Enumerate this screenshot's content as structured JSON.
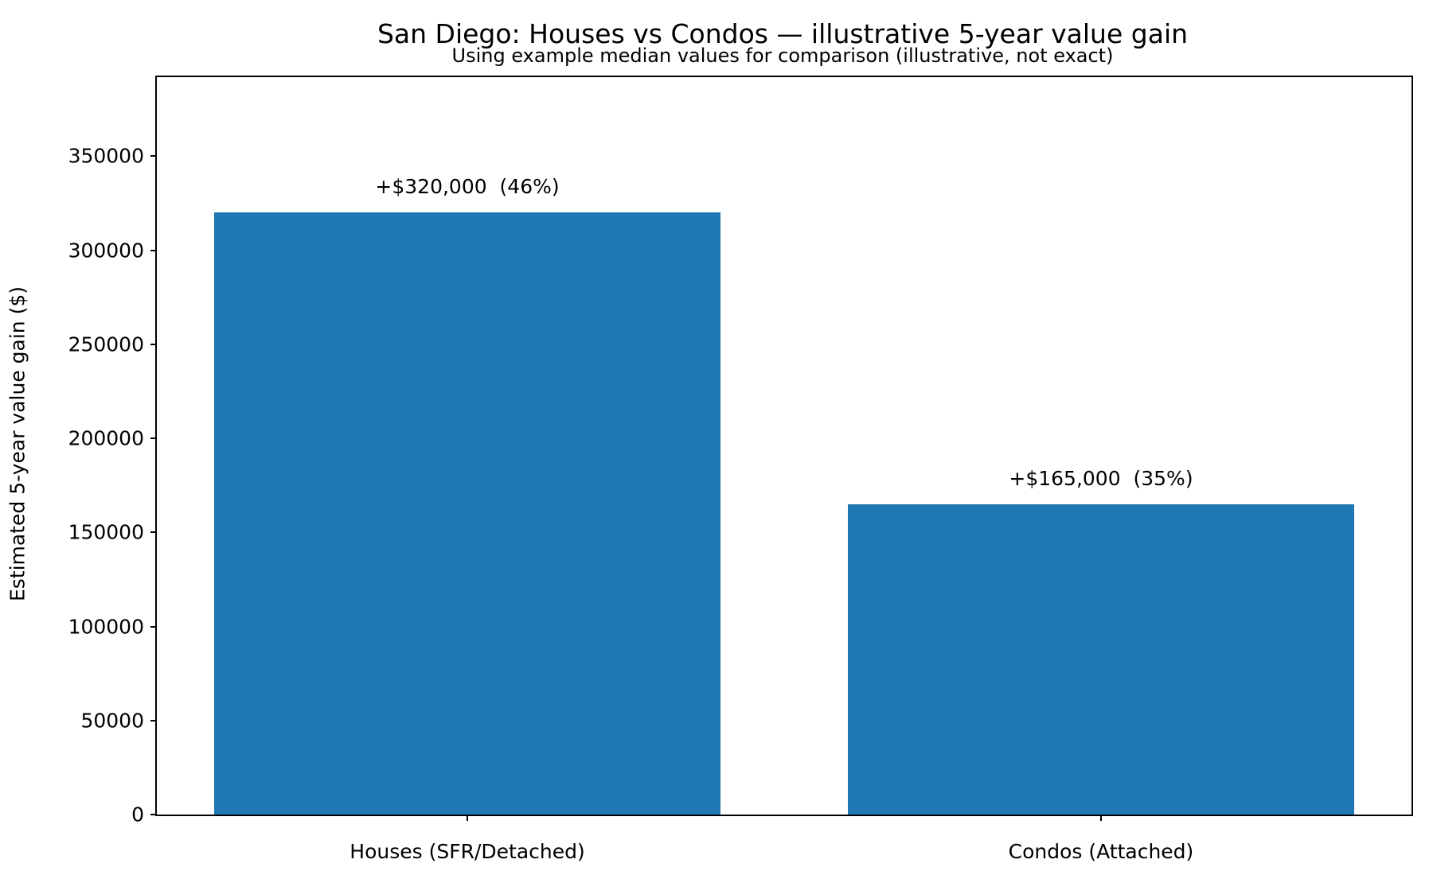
{
  "chart_data": {
    "type": "bar",
    "title": "San Diego: Houses vs Condos — illustrative 5-year value gain",
    "subtitle": "Using example median values for comparison (illustrative, not exact)",
    "ylabel": "Estimated 5-year value gain ($)",
    "xlabel": "",
    "categories": [
      "Houses (SFR/Detached)",
      "Condos (Attached)"
    ],
    "values": [
      320000,
      165000
    ],
    "bar_labels": [
      "+$320,000  (46%)",
      "+$165,000  (35%)"
    ],
    "yticks": [
      0,
      50000,
      100000,
      150000,
      200000,
      250000,
      300000,
      350000
    ],
    "ytick_labels": [
      "0",
      "50000",
      "100000",
      "150000",
      "200000",
      "250000",
      "300000",
      "350000"
    ],
    "ylim": [
      0,
      392000
    ],
    "bar_color": "#1f77b4",
    "axis_color": "#000000",
    "grid": false,
    "legend": null
  }
}
